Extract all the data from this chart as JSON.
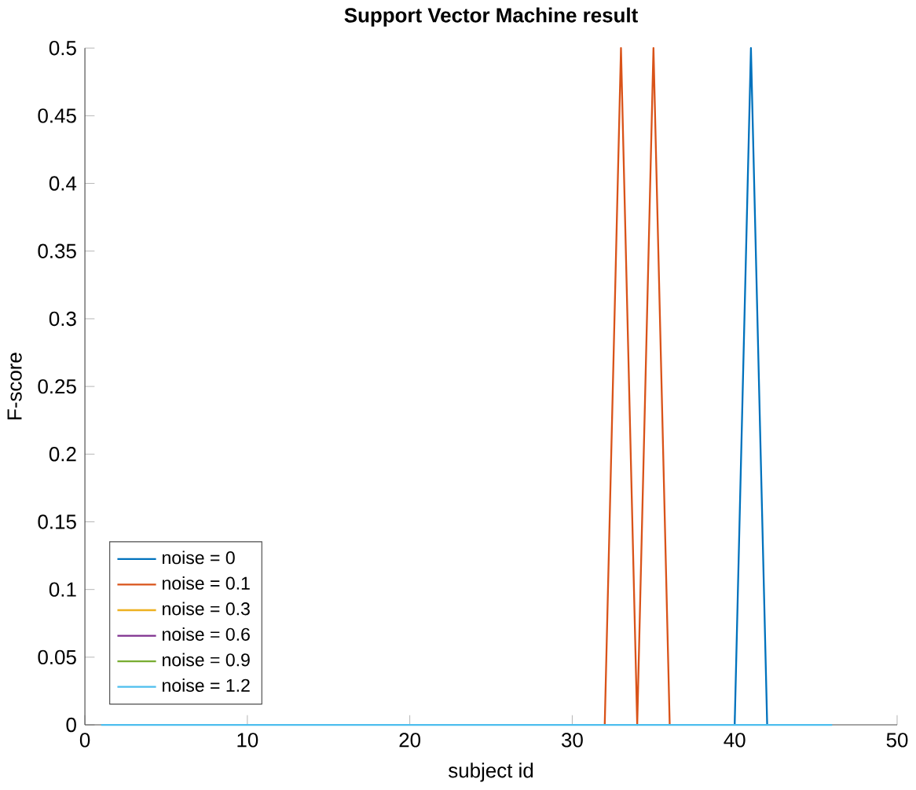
{
  "chart_data": {
    "type": "line",
    "title": "Support Vector Machine result",
    "xlabel": "subject id",
    "ylabel": "F-score",
    "x": [
      1,
      2,
      3,
      4,
      5,
      6,
      7,
      8,
      9,
      10,
      11,
      12,
      13,
      14,
      15,
      16,
      17,
      18,
      19,
      20,
      21,
      22,
      23,
      24,
      25,
      26,
      27,
      28,
      29,
      30,
      31,
      32,
      33,
      34,
      35,
      36,
      37,
      38,
      39,
      40,
      41,
      42,
      43,
      44,
      45,
      46
    ],
    "series": [
      {
        "name": "noise = 0",
        "color": "#0072bd",
        "values": [
          null,
          null,
          null,
          null,
          null,
          null,
          null,
          null,
          null,
          null,
          null,
          null,
          null,
          null,
          null,
          null,
          null,
          null,
          null,
          null,
          null,
          null,
          null,
          null,
          null,
          null,
          null,
          null,
          null,
          null,
          null,
          null,
          null,
          null,
          null,
          null,
          null,
          null,
          null,
          0,
          0.5,
          0,
          null,
          null,
          null,
          null
        ]
      },
      {
        "name": "noise = 0.1",
        "color": "#d95319",
        "values": [
          null,
          null,
          null,
          null,
          null,
          null,
          null,
          null,
          null,
          null,
          null,
          null,
          null,
          null,
          null,
          null,
          null,
          null,
          null,
          null,
          null,
          null,
          null,
          null,
          null,
          null,
          null,
          null,
          null,
          null,
          null,
          0,
          0.5,
          0,
          0.5,
          0,
          null,
          null,
          null,
          null,
          null,
          null,
          null,
          null,
          null,
          null
        ]
      },
      {
        "name": "noise = 0.3",
        "color": "#edb120",
        "values": [
          null,
          null,
          null,
          null,
          null,
          null,
          null,
          null,
          null,
          null,
          null,
          null,
          null,
          null,
          null,
          null,
          null,
          null,
          null,
          null,
          null,
          null,
          null,
          null,
          null,
          null,
          null,
          null,
          null,
          null,
          null,
          null,
          null,
          null,
          null,
          null,
          null,
          null,
          null,
          null,
          null,
          null,
          null,
          null,
          null,
          null
        ]
      },
      {
        "name": "noise = 0.6",
        "color": "#7e2f8e",
        "values": [
          null,
          null,
          null,
          null,
          null,
          null,
          null,
          null,
          null,
          null,
          null,
          null,
          null,
          null,
          null,
          null,
          null,
          null,
          null,
          null,
          null,
          null,
          null,
          null,
          null,
          null,
          null,
          null,
          null,
          null,
          null,
          null,
          null,
          null,
          null,
          null,
          null,
          null,
          null,
          null,
          null,
          null,
          null,
          null,
          null,
          null
        ]
      },
      {
        "name": "noise = 0.9",
        "color": "#77ac30",
        "values": [
          null,
          null,
          null,
          null,
          null,
          null,
          null,
          null,
          null,
          null,
          null,
          null,
          null,
          null,
          null,
          null,
          null,
          null,
          null,
          null,
          null,
          null,
          null,
          null,
          null,
          null,
          null,
          null,
          null,
          null,
          null,
          null,
          null,
          null,
          null,
          null,
          null,
          null,
          null,
          null,
          null,
          null,
          null,
          null,
          null,
          null
        ]
      },
      {
        "name": "noise = 1.2",
        "color": "#4dbeee",
        "values": [
          0,
          0,
          0,
          0,
          0,
          0,
          0,
          0,
          0,
          0,
          0,
          0,
          0,
          0,
          0,
          0,
          0,
          0,
          0,
          0,
          0,
          0,
          0,
          0,
          0,
          0,
          0,
          0,
          0,
          0,
          0,
          0,
          0,
          0,
          0,
          0,
          0,
          0,
          0,
          0,
          0,
          0,
          0,
          0,
          0,
          0
        ]
      }
    ],
    "xlim": [
      0,
      50
    ],
    "xticks": [
      0,
      10,
      20,
      30,
      40,
      50
    ],
    "ylim": [
      0,
      0.5
    ],
    "yticks": [
      0,
      0.05,
      0.1,
      0.15,
      0.2,
      0.25,
      0.3,
      0.35,
      0.4,
      0.45,
      0.5
    ],
    "legend": "bottom left",
    "grid": false
  }
}
